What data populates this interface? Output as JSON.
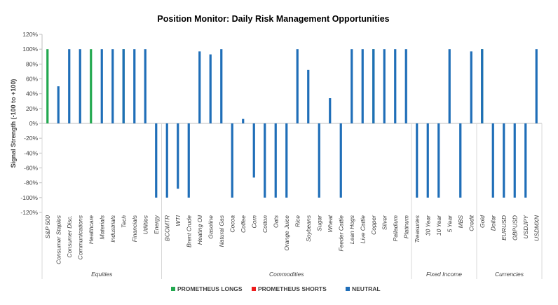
{
  "chart_data": {
    "type": "bar",
    "title": "Position Monitor: Daily Risk Management Opportunities",
    "ylabel": "Signal Strength (-100 to +100)",
    "ylim": [
      -120,
      120
    ],
    "yticks": [
      "120%",
      "100%",
      "80%",
      "60%",
      "40%",
      "20%",
      "0%",
      "-20%",
      "-40%",
      "-60%",
      "-80%",
      "-100%",
      "-120%"
    ],
    "grid": false,
    "legend_position": "bottom",
    "colors": {
      "longs": "#22a84f",
      "shorts": "#ee1c1c",
      "neutral": "#1f6eb8"
    },
    "legend": [
      "PROMETHEUS LONGS",
      "PROMETHEUS SHORTS",
      "NEUTRAL"
    ],
    "categories": [
      "S&P 500",
      "Consumer Staples",
      "Consumer Disc.",
      "Communications",
      "Healthcare",
      "Materials",
      "Industrials",
      "Tech",
      "Financials",
      "Utilities",
      "Energy",
      "BCOMTR",
      "WTI",
      "Brent Crude",
      "Heating Oil",
      "Gasoline",
      "Natural Gas",
      "Cocoa",
      "Coffee",
      "Corn",
      "Cotton",
      "Oats",
      "Orange Juice",
      "Rice",
      "Soybeans",
      "Sugar",
      "Wheat",
      "Feeder Cattle",
      "Lean Hogs",
      "Live Cattle",
      "Copper",
      "Silver",
      "Palladium",
      "Platinum",
      "Treasuries",
      "30 Year",
      "10 Year",
      "5 Year",
      "MBS",
      "Credit",
      "Gold",
      "Dollar",
      "EURUSD",
      "GBPUSD",
      "USDJPY",
      "USDMXN"
    ],
    "series": [
      {
        "name": "PROMETHEUS LONGS",
        "values": [
          100,
          null,
          null,
          null,
          100,
          null,
          null,
          100,
          null,
          null,
          null,
          null,
          null,
          null,
          null,
          null,
          null,
          null,
          null,
          null,
          null,
          null,
          null,
          null,
          null,
          null,
          null,
          null,
          null,
          null,
          100,
          null,
          null,
          null,
          null,
          null,
          null,
          null,
          null,
          null,
          100,
          null,
          null,
          null,
          null,
          null
        ]
      },
      {
        "name": "PROMETHEUS SHORTS",
        "values": [
          null,
          null,
          null,
          null,
          null,
          null,
          null,
          null,
          null,
          null,
          null,
          null,
          null,
          null,
          null,
          null,
          null,
          null,
          null,
          null,
          null,
          null,
          null,
          null,
          null,
          null,
          null,
          null,
          null,
          null,
          null,
          null,
          null,
          null,
          null,
          null,
          null,
          null,
          null,
          null,
          null,
          null,
          null,
          null,
          null,
          null
        ]
      },
      {
        "name": "NEUTRAL",
        "values": [
          null,
          50,
          100,
          100,
          null,
          100,
          100,
          100,
          100,
          100,
          -100,
          -100,
          -88,
          -100,
          97,
          93,
          100,
          -100,
          6,
          -73,
          -100,
          -100,
          -100,
          100,
          72,
          -100,
          34,
          -100,
          100,
          100,
          100,
          100,
          100,
          100,
          -100,
          -100,
          -100,
          100,
          -100,
          97,
          100,
          -100,
          -100,
          -100,
          -100,
          100
        ]
      }
    ],
    "groups": [
      {
        "label": "Equities",
        "start": 0,
        "end": 10
      },
      {
        "label": "Commodities",
        "start": 11,
        "end": 33
      },
      {
        "label": "Fixed Income",
        "start": 34,
        "end": 39
      },
      {
        "label": "Currencies",
        "start": 40,
        "end": 45
      }
    ]
  }
}
